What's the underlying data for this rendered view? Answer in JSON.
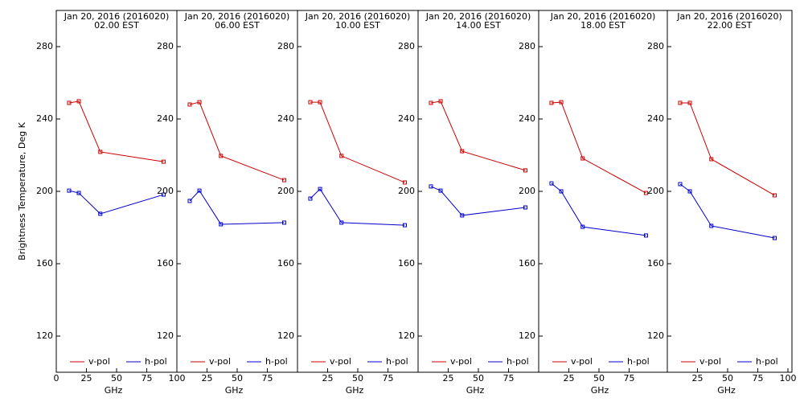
{
  "chart_data": [
    {
      "type": "line",
      "title": "Jan 20, 2016 (2016020)",
      "subtitle": "02.00 EST",
      "ylabel": "Brightness Temperature, Deg K",
      "xlabel": "GHz",
      "x": [
        10.65,
        18.7,
        36.5,
        89
      ],
      "xlim": [
        0,
        100
      ],
      "xticks": [
        0,
        25,
        50,
        75,
        100
      ],
      "ylim": [
        100,
        300
      ],
      "yticks": [
        120,
        160,
        200,
        240,
        280
      ],
      "series": [
        {
          "name": "v-pol",
          "color": "#cc0000",
          "values": [
            248.9,
            249.8,
            221.8,
            216.4
          ]
        },
        {
          "name": "h-pol",
          "color": "#0000cc",
          "values": [
            200.4,
            199.1,
            187.6,
            198.2
          ]
        }
      ]
    },
    {
      "type": "line",
      "title": "Jan 20, 2016 (2016020)",
      "subtitle": "06.00 EST",
      "xlabel": "GHz",
      "x": [
        10.65,
        18.7,
        36.5,
        89
      ],
      "xlim": [
        0,
        100
      ],
      "xticks": [
        25,
        50,
        75
      ],
      "ylim": [
        100,
        300
      ],
      "yticks": [
        120,
        160,
        200,
        240,
        280
      ],
      "series": [
        {
          "name": "v-pol",
          "color": "#cc0000",
          "values": [
            248.0,
            249.3,
            219.6,
            206.2
          ]
        },
        {
          "name": "h-pol",
          "color": "#0000cc",
          "values": [
            194.7,
            200.4,
            181.8,
            182.7
          ]
        }
      ]
    },
    {
      "type": "line",
      "title": "Jan 20, 2016 (2016020)",
      "subtitle": "10.00 EST",
      "xlabel": "GHz",
      "x": [
        10.65,
        18.7,
        36.5,
        89
      ],
      "xlim": [
        0,
        100
      ],
      "xticks": [
        25,
        50,
        75
      ],
      "ylim": [
        100,
        300
      ],
      "yticks": [
        120,
        160,
        200,
        240,
        280
      ],
      "series": [
        {
          "name": "v-pol",
          "color": "#cc0000",
          "values": [
            249.3,
            249.3,
            219.6,
            204.9
          ]
        },
        {
          "name": "h-pol",
          "color": "#0000cc",
          "values": [
            196.0,
            201.3,
            182.7,
            181.3
          ]
        }
      ]
    },
    {
      "type": "line",
      "title": "Jan 20, 2016 (2016020)",
      "subtitle": "14.00 EST",
      "xlabel": "GHz",
      "x": [
        10.65,
        18.7,
        36.5,
        89
      ],
      "xlim": [
        0,
        100
      ],
      "xticks": [
        25,
        50,
        75
      ],
      "ylim": [
        100,
        300
      ],
      "yticks": [
        120,
        160,
        200,
        240,
        280
      ],
      "series": [
        {
          "name": "v-pol",
          "color": "#cc0000",
          "values": [
            248.9,
            249.8,
            222.2,
            211.6
          ]
        },
        {
          "name": "h-pol",
          "color": "#0000cc",
          "values": [
            202.7,
            200.4,
            186.7,
            191.1
          ]
        }
      ]
    },
    {
      "type": "line",
      "title": "Jan 20, 2016 (2016020)",
      "subtitle": "18.00 EST",
      "xlabel": "GHz",
      "x": [
        10.65,
        18.7,
        36.5,
        89
      ],
      "xlim": [
        0,
        100
      ],
      "xticks": [
        25,
        50,
        75
      ],
      "ylim": [
        100,
        300
      ],
      "yticks": [
        120,
        160,
        200,
        240,
        280
      ],
      "series": [
        {
          "name": "v-pol",
          "color": "#cc0000",
          "values": [
            248.9,
            249.3,
            218.2,
            199.1
          ]
        },
        {
          "name": "h-pol",
          "color": "#0000cc",
          "values": [
            204.4,
            200.0,
            180.4,
            175.6
          ]
        }
      ]
    },
    {
      "type": "line",
      "title": "Jan 20, 2016 (2016020)",
      "subtitle": "22.00 EST",
      "xlabel": "GHz",
      "x": [
        10.65,
        18.7,
        36.5,
        89
      ],
      "xlim": [
        0,
        100
      ],
      "xticks": [
        25,
        50,
        75,
        100
      ],
      "ylim": [
        100,
        300
      ],
      "yticks": [
        120,
        160,
        200,
        240,
        280
      ],
      "series": [
        {
          "name": "v-pol",
          "color": "#cc0000",
          "values": [
            248.9,
            248.9,
            217.8,
            197.8
          ]
        },
        {
          "name": "h-pol",
          "color": "#0000cc",
          "values": [
            204.0,
            200.0,
            180.9,
            174.2
          ]
        }
      ]
    }
  ]
}
